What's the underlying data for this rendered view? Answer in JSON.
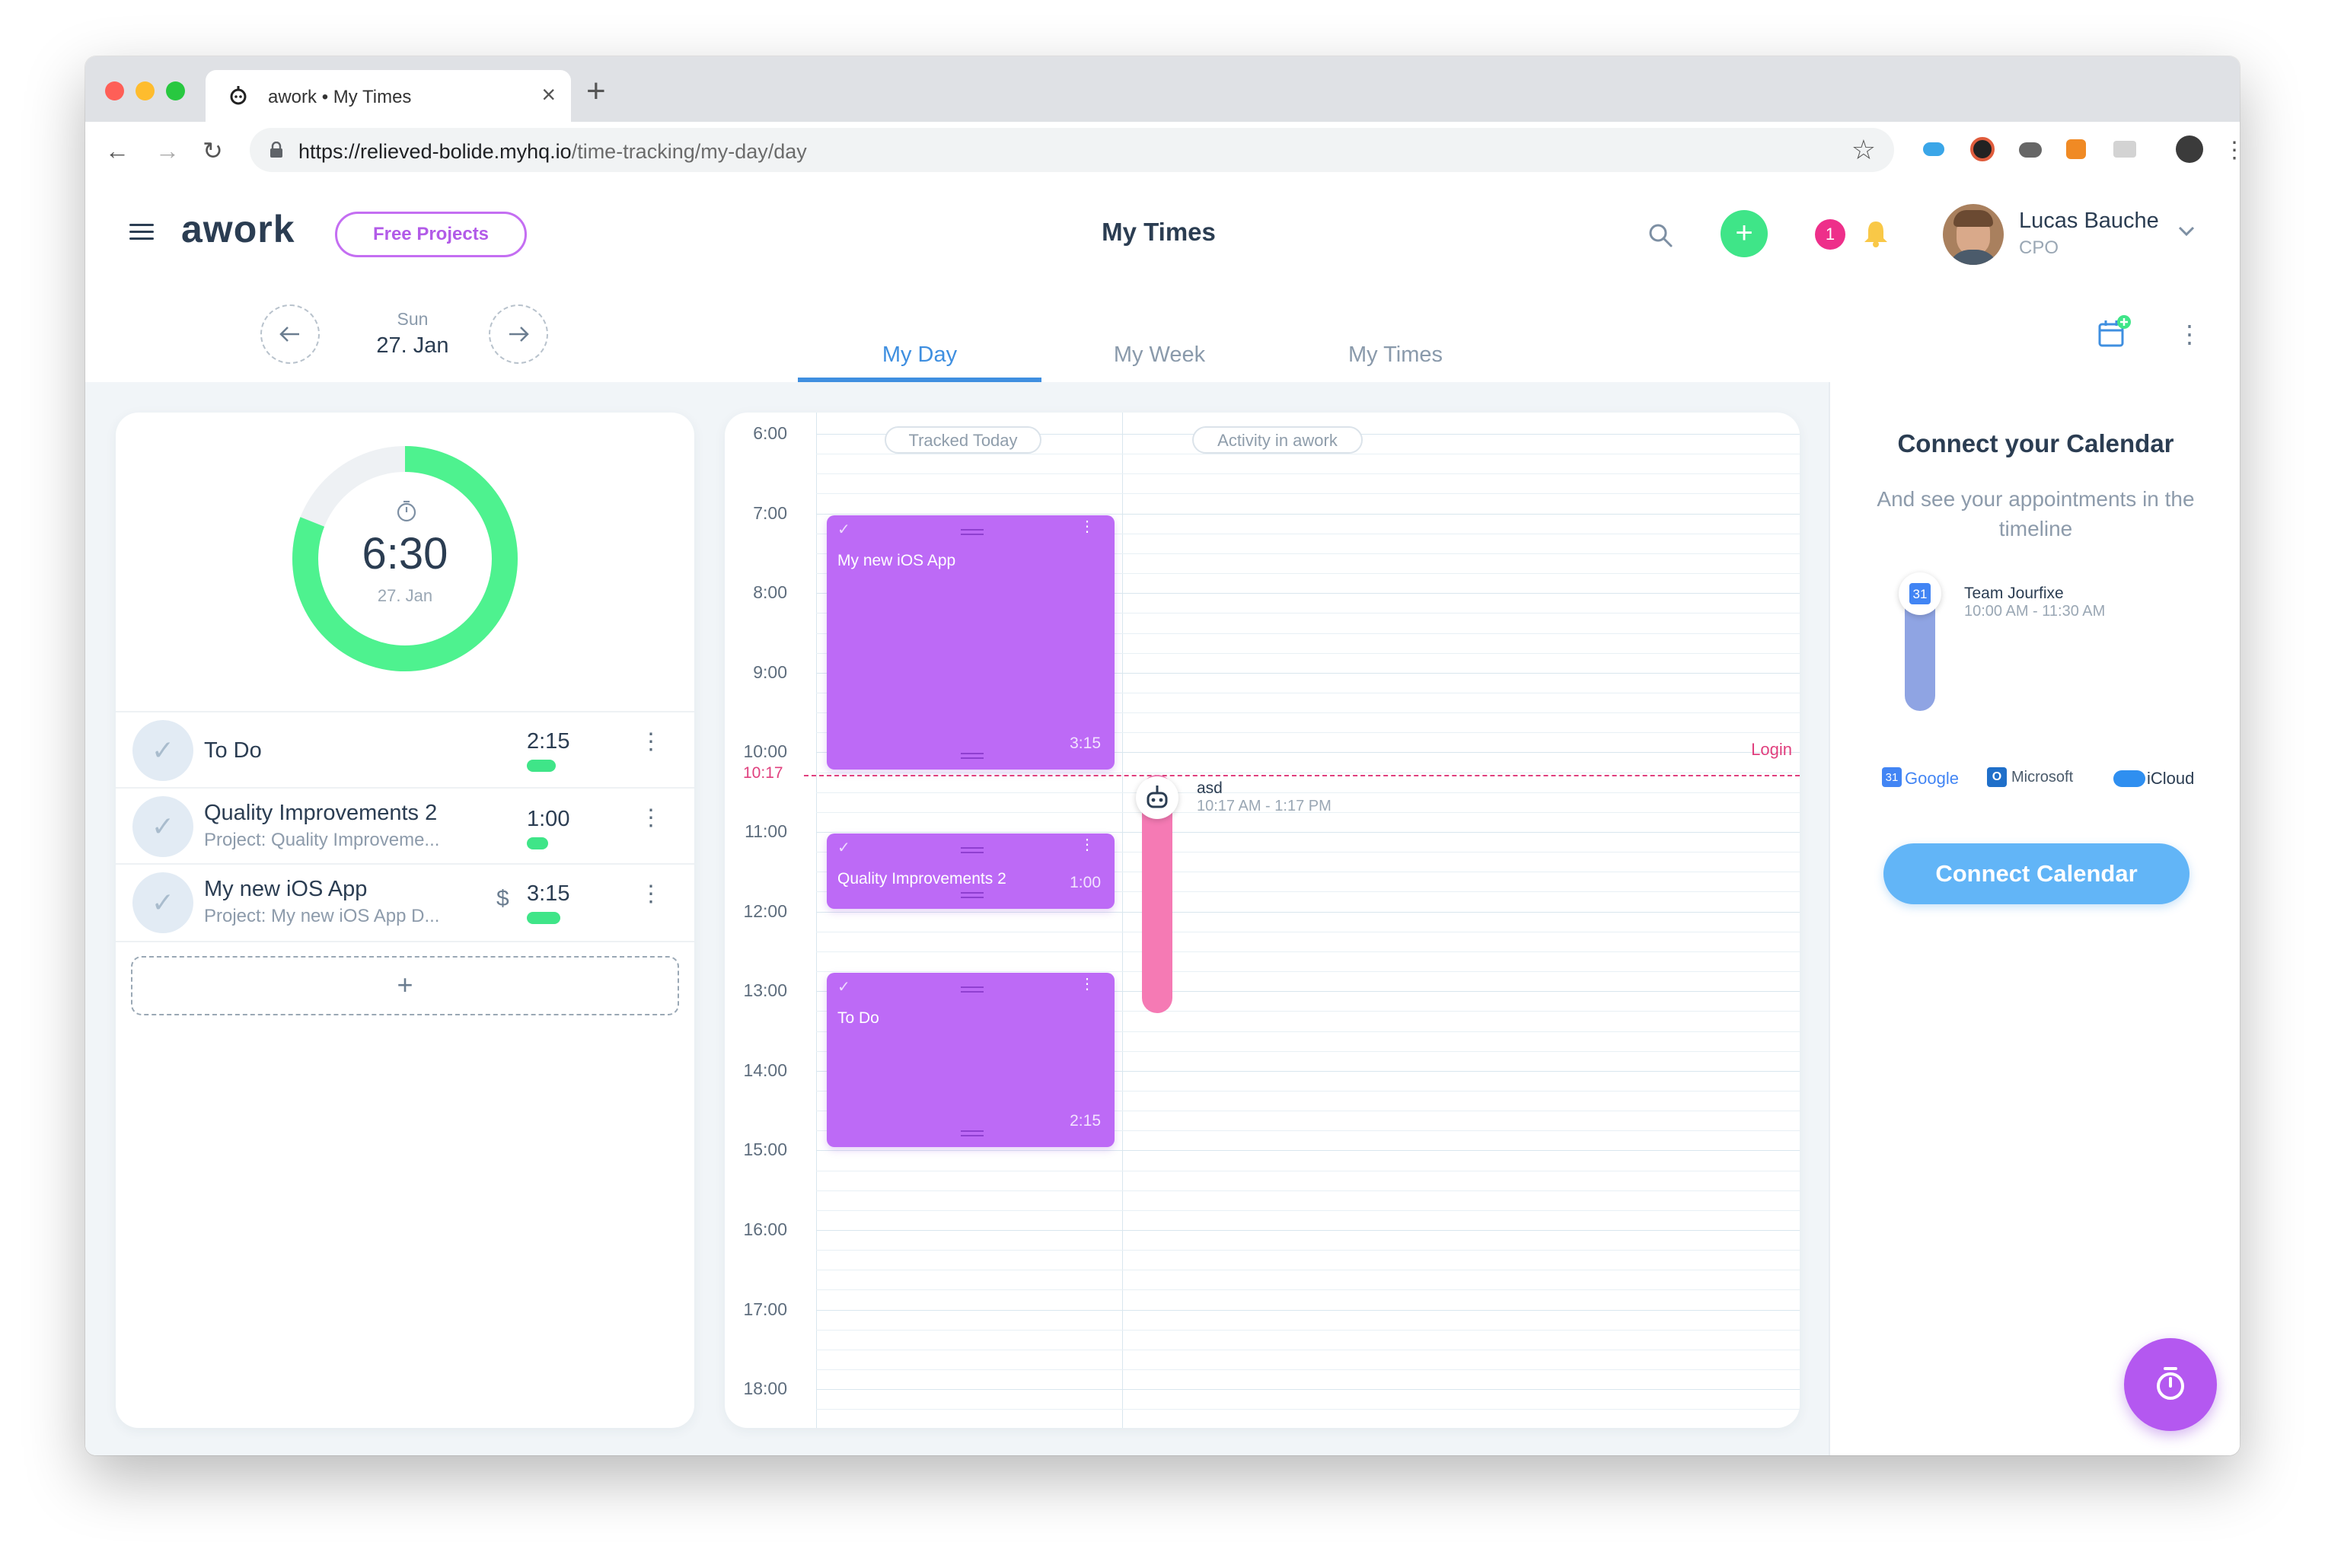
{
  "browser": {
    "tab_title": "awork • My Times",
    "url_host": "https://relieved-bolide.myhq.io",
    "url_path": "/time-tracking/my-day/day",
    "new_tab": "+"
  },
  "header": {
    "logo": "awork",
    "free_projects": "Free Projects",
    "page_title": "My Times",
    "notification_count": "1",
    "user_name": "Lucas Bauche",
    "user_role": "CPO"
  },
  "date_nav": {
    "weekday": "Sun",
    "date": "27. Jan"
  },
  "tabs": [
    {
      "label": "My Day",
      "active": true
    },
    {
      "label": "My Week",
      "active": false
    },
    {
      "label": "My Times",
      "active": false
    }
  ],
  "summary": {
    "total": "6:30",
    "date": "27. Jan",
    "progress": 0.81
  },
  "entries": [
    {
      "title": "To Do",
      "subtitle": "",
      "time": "2:15",
      "billable": false
    },
    {
      "title": "Quality Improvements 2",
      "subtitle": "Project: Quality Improveme...",
      "time": "1:00",
      "billable": false
    },
    {
      "title": "My new iOS App",
      "subtitle": "Project: My new iOS App D...",
      "time": "3:15",
      "billable": true
    }
  ],
  "add_entry": "+",
  "currency_symbol": "$",
  "timeline": {
    "col_tracked": "Tracked Today",
    "col_activity": "Activity in awork",
    "hours": [
      "6:00",
      "7:00",
      "8:00",
      "9:00",
      "10:00",
      "11:00",
      "12:00",
      "13:00",
      "14:00",
      "15:00",
      "16:00",
      "17:00",
      "18:00"
    ],
    "now_label": "10:17",
    "login_label": "Login",
    "blocks": [
      {
        "title": "My new iOS App",
        "time": "3:15",
        "start": 7.0,
        "end": 10.25
      },
      {
        "title": "Quality Improvements 2",
        "time": "1:00",
        "start": 11.0,
        "end": 12.0
      },
      {
        "title": "To Do",
        "time": "2:15",
        "start": 12.75,
        "end": 15.0
      }
    ],
    "activity": {
      "title": "asd",
      "time": "10:17 AM - 1:17 PM",
      "start": 10.28,
      "end": 13.28
    }
  },
  "calendar_panel": {
    "title": "Connect your Calendar",
    "subtitle": "And see your appointments in the timeline",
    "event_title": "Team Jourfixe",
    "event_time": "10:00 AM - 11:30 AM",
    "calendar_day": "31",
    "providers": [
      "Google",
      "Microsoft",
      "iCloud"
    ],
    "connect_button": "Connect Calendar"
  },
  "colors": {
    "accent_blue": "#3f8fe0",
    "green": "#3fe588",
    "purple": "#bd6af6",
    "pink": "#f57ab4",
    "connect_button": "#62b5f7"
  }
}
